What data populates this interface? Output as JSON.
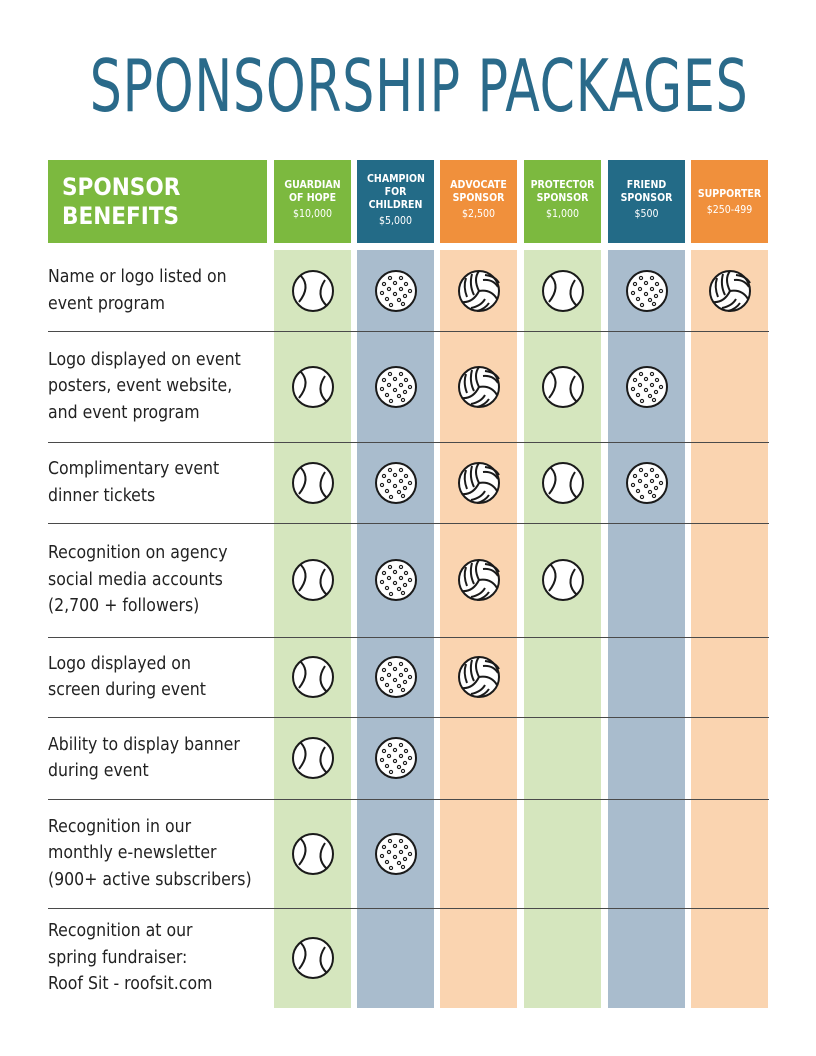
{
  "title": "SPONSORSHIP PACKAGES",
  "benefits_header": "SPONSOR BENEFITS",
  "columns": [
    {
      "name": "GUARDIAN OF HOPE",
      "price": "$10,000",
      "color": "#7cb93f",
      "bg": "#d5e6be",
      "icon": "tennis-ball-icon"
    },
    {
      "name": "CHAMPION FOR CHILDREN",
      "price": "$5,000",
      "color": "#236b87",
      "bg": "#a9bccd",
      "icon": "pickleball-icon"
    },
    {
      "name": "ADVOCATE SPONSOR",
      "price": "$2,500",
      "color": "#f0903c",
      "bg": "#fad4b0",
      "icon": "volleyball-icon"
    },
    {
      "name": "PROTECTOR SPONSOR",
      "price": "$1,000",
      "color": "#7cb93f",
      "bg": "#d5e6be",
      "icon": "tennis-ball-icon"
    },
    {
      "name": "FRIEND SPONSOR",
      "price": "$500",
      "color": "#236b87",
      "bg": "#a9bccd",
      "icon": "pickleball-icon"
    },
    {
      "name": "SUPPORTER",
      "price": "$250-499",
      "color": "#f0903c",
      "bg": "#fad4b0",
      "icon": "volleyball-icon"
    }
  ],
  "rows": [
    {
      "benefit": "Name or logo listed on event program",
      "lines": [
        "Name or logo listed on",
        "event program"
      ],
      "included": [
        true,
        true,
        true,
        true,
        true,
        true
      ]
    },
    {
      "benefit": "Logo displayed on event posters, event website, and event program",
      "lines": [
        "Logo displayed on event",
        "posters, event website,",
        "and event program"
      ],
      "included": [
        true,
        true,
        true,
        true,
        true,
        false
      ]
    },
    {
      "benefit": "Complimentary event dinner tickets",
      "lines": [
        "Complimentary event",
        "dinner tickets"
      ],
      "included": [
        true,
        true,
        true,
        true,
        true,
        false
      ]
    },
    {
      "benefit": "Recognition on agency social media accounts (2,700 + followers)",
      "lines": [
        "Recognition on agency",
        "social media accounts",
        "(2,700 + followers)"
      ],
      "included": [
        true,
        true,
        true,
        true,
        false,
        false
      ]
    },
    {
      "benefit": "Logo displayed on screen during event",
      "lines": [
        "Logo displayed on",
        "screen during event"
      ],
      "included": [
        true,
        true,
        true,
        false,
        false,
        false
      ]
    },
    {
      "benefit": "Ability to display banner during event",
      "lines": [
        "Ability to display banner",
        "during event"
      ],
      "included": [
        true,
        true,
        false,
        false,
        false,
        false
      ]
    },
    {
      "benefit": "Recognition in our monthly e-newsletter (900+ active subscribers)",
      "lines": [
        "Recognition in our",
        "monthly e-newsletter",
        "(900+ active subscribers)"
      ],
      "included": [
        true,
        true,
        false,
        false,
        false,
        false
      ]
    },
    {
      "benefit": "Recognition at our spring fundraiser: Roof Sit - roofsit.com",
      "lines": [
        "Recognition at our",
        "spring fundraiser:",
        "Roof Sit - roofsit.com"
      ],
      "included": [
        true,
        false,
        false,
        false,
        false,
        false
      ]
    }
  ]
}
